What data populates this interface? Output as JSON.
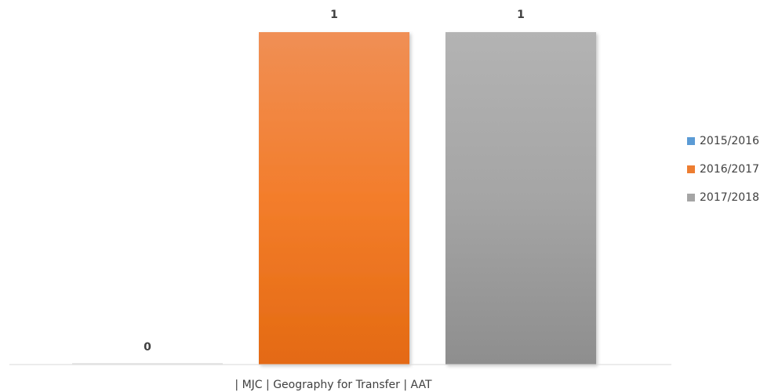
{
  "chart_data": {
    "type": "bar",
    "categories": [
      "| MJC | Geography for Transfer | AAT"
    ],
    "series": [
      {
        "name": "2015/2016",
        "values": [
          0
        ],
        "color": "#5B9BD5"
      },
      {
        "name": "2016/2017",
        "values": [
          1
        ],
        "color": "#ED7D31"
      },
      {
        "name": "2017/2018",
        "values": [
          1
        ],
        "color": "#A5A5A5"
      }
    ],
    "ylim": [
      0,
      1
    ],
    "grid": false,
    "legend": "right",
    "data_labels": true
  }
}
